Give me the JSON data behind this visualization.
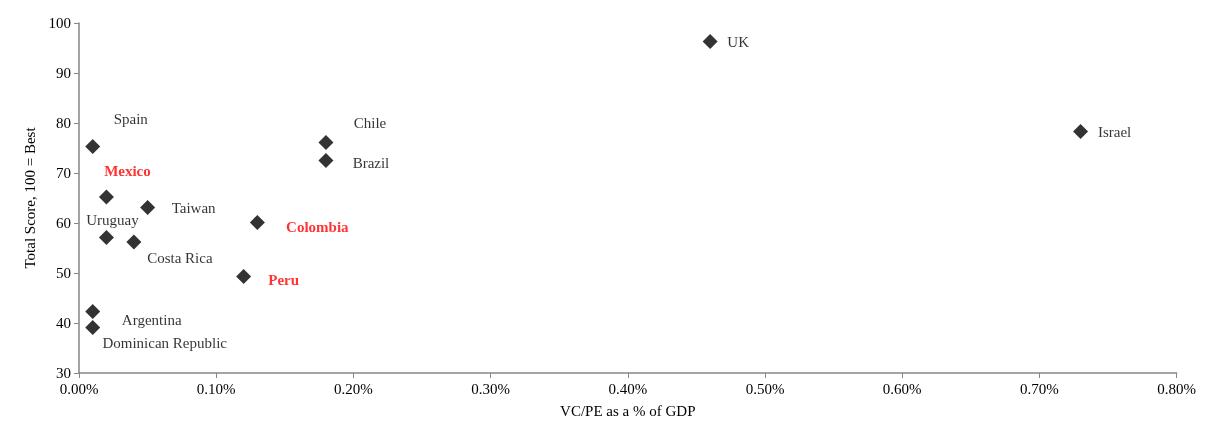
{
  "chart_data": {
    "type": "scatter",
    "xlabel": "VC/PE as a % of GDP",
    "ylabel": "Total Score, 100 = Best",
    "xlim": [
      0,
      0.8
    ],
    "xticks": [
      {
        "value": 0,
        "label": "0.00%"
      },
      {
        "value": 0.1,
        "label": "0.10%"
      },
      {
        "value": 0.2,
        "label": "0.20%"
      },
      {
        "value": 0.3,
        "label": "0.30%"
      },
      {
        "value": 0.4,
        "label": "0.40%"
      },
      {
        "value": 0.5,
        "label": "0.50%"
      },
      {
        "value": 0.6,
        "label": "0.60%"
      },
      {
        "value": 0.7,
        "label": "0.70%"
      },
      {
        "value": 0.8,
        "label": "0.80%"
      }
    ],
    "ylim": [
      30,
      100
    ],
    "yticks": [
      30,
      40,
      50,
      60,
      70,
      80,
      90,
      100
    ],
    "grid": false,
    "marker": "diamond",
    "series": [
      {
        "color": "#000000",
        "x": [
          0.01,
          0.05,
          0.02,
          0.04,
          0.18,
          0.18,
          0.01,
          0.01,
          0.46,
          0.73
        ],
        "values": [
          75.3,
          63.1,
          57.1,
          56.2,
          76.1,
          72.5,
          42.3,
          39.1,
          96.3,
          78.3
        ],
        "value_labels": [
          "Spain",
          "Taiwan",
          "Uruguay",
          "Costa Rica",
          "Chile",
          "Brazil",
          "Argentina",
          "Dominican Republic",
          "UK",
          "Israel"
        ]
      },
      {
        "color": "#000000",
        "x": [
          0.02,
          0.13,
          0.12
        ],
        "values": [
          65.2,
          60.1,
          49.3
        ],
        "value_labels": [
          "Mexico",
          "Colombia",
          "Peru"
        ]
      }
    ]
  }
}
